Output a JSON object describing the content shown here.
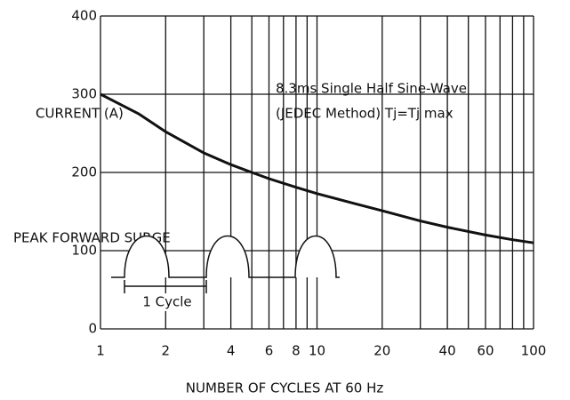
{
  "chart_data": {
    "type": "line",
    "xscale": "log",
    "xlabel": "NUMBER OF CYCLES AT 60 Hz",
    "ylabel": [
      "CURRENT (A)",
      "PEAK FORWARD SURGE"
    ],
    "annotation": [
      "8.3ms Single Half Sine-Wave",
      "(JEDEC Method) Tj=Tj max"
    ],
    "inset_label": "1 Cycle",
    "x": [
      1,
      1.5,
      2,
      3,
      4,
      5,
      6,
      8,
      10,
      15,
      20,
      30,
      40,
      60,
      80,
      100
    ],
    "series": [
      {
        "name": "Peak forward surge",
        "color": "#111111",
        "values": [
          300,
          275,
          252,
          225,
          210,
          200,
          192,
          181,
          173,
          160,
          151,
          138,
          130,
          120,
          114,
          110
        ]
      }
    ],
    "xlim": [
      1,
      100
    ],
    "ylim": [
      0,
      400
    ],
    "xticks": [
      1,
      2,
      4,
      6,
      8,
      10,
      20,
      40,
      60,
      100
    ],
    "xminorticks": [
      3,
      5,
      7,
      9,
      30,
      50,
      70,
      80,
      90
    ],
    "yticks": [
      0,
      100,
      200,
      300,
      400
    ],
    "grid": true
  }
}
